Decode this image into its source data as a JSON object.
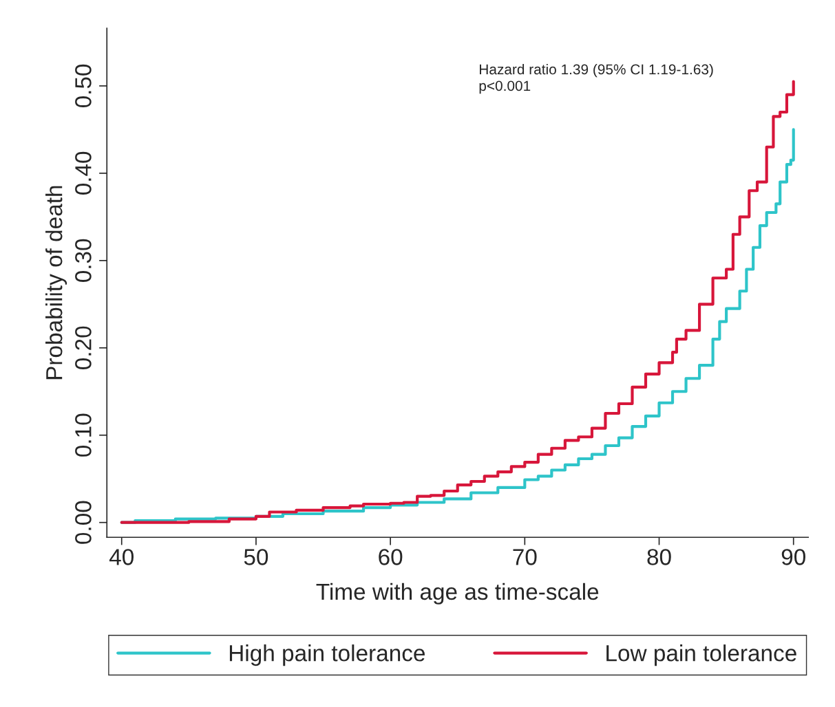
{
  "chart_data": {
    "type": "step",
    "xlabel": "Time with age as time-scale",
    "ylabel": "Probability of death",
    "annotations": [
      "Hazard ratio 1.39 (95% CI 1.19-1.63)\np<0.001"
    ],
    "xlim": [
      38.9,
      91.1
    ],
    "xticks": [
      40,
      50,
      60,
      70,
      80,
      90
    ],
    "ylim": [
      -0.017,
      0.566
    ],
    "yticks": [
      {
        "value": 0,
        "label": "0.00"
      },
      {
        "value": 0.1,
        "label": "0.10"
      },
      {
        "value": 0.2,
        "label": "0.20"
      },
      {
        "value": 0.3,
        "label": "0.30"
      },
      {
        "value": 0.4,
        "label": "0.40"
      },
      {
        "value": 0.5,
        "label": "0.50"
      }
    ],
    "grid": false,
    "legend": "bottom",
    "line_style": "solid",
    "marker": "none",
    "series": [
      {
        "name": "High pain tolerance",
        "color": "#2ec4c9",
        "x": [
          40,
          41,
          44,
          47,
          50,
          52,
          55,
          58,
          60,
          62,
          64,
          66,
          68,
          70,
          71,
          72,
          73,
          74,
          75,
          76,
          77,
          78,
          79,
          80,
          81,
          82,
          83,
          84,
          84.5,
          85,
          86,
          86.5,
          87,
          87.5,
          88,
          88.7,
          89,
          89.5,
          89.8,
          90
        ],
        "values": [
          0,
          0.002,
          0.004,
          0.005,
          0.007,
          0.01,
          0.013,
          0.017,
          0.02,
          0.023,
          0.027,
          0.034,
          0.04,
          0.049,
          0.053,
          0.06,
          0.066,
          0.073,
          0.078,
          0.088,
          0.097,
          0.11,
          0.122,
          0.137,
          0.15,
          0.165,
          0.18,
          0.21,
          0.23,
          0.245,
          0.265,
          0.29,
          0.315,
          0.34,
          0.355,
          0.365,
          0.39,
          0.41,
          0.415,
          0.45
        ]
      },
      {
        "name": "Low pain tolerance",
        "color": "#d7163a",
        "x": [
          40,
          45,
          48,
          50,
          51,
          53,
          55,
          57,
          58,
          60,
          61,
          62,
          63,
          64,
          65,
          66,
          67,
          68,
          69,
          70,
          71,
          72,
          73,
          74,
          75,
          76,
          77,
          78,
          79,
          80,
          81,
          81.3,
          82,
          83,
          84,
          85,
          85.5,
          86,
          86.7,
          87.3,
          88,
          88.5,
          89,
          89.5,
          90
        ],
        "values": [
          0,
          0.001,
          0.004,
          0.007,
          0.012,
          0.014,
          0.017,
          0.019,
          0.021,
          0.022,
          0.023,
          0.03,
          0.031,
          0.036,
          0.043,
          0.047,
          0.053,
          0.058,
          0.064,
          0.069,
          0.078,
          0.085,
          0.094,
          0.098,
          0.108,
          0.125,
          0.136,
          0.155,
          0.17,
          0.183,
          0.195,
          0.21,
          0.22,
          0.25,
          0.28,
          0.29,
          0.33,
          0.35,
          0.38,
          0.39,
          0.43,
          0.465,
          0.47,
          0.49,
          0.505
        ]
      }
    ]
  }
}
